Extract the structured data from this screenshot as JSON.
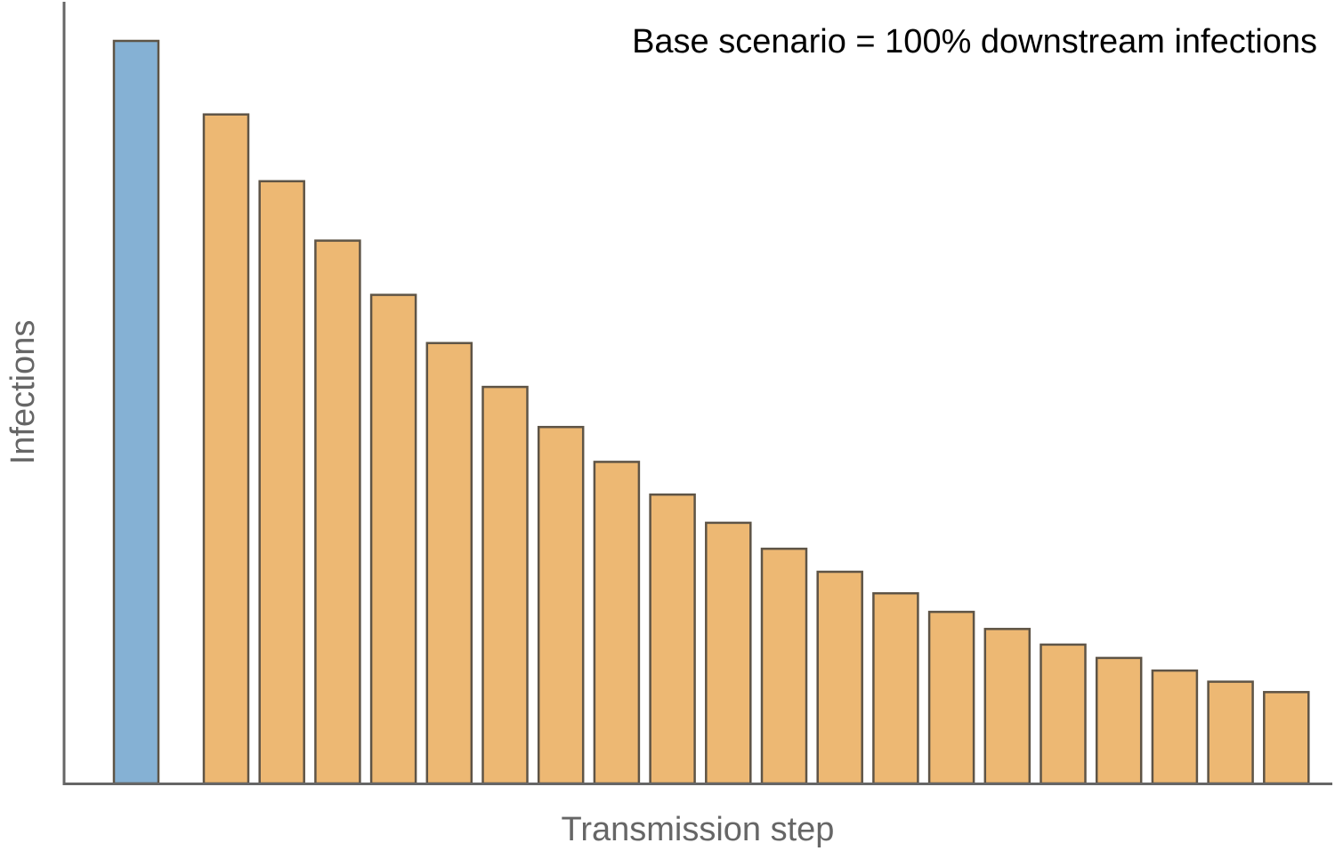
{
  "chart_data": {
    "type": "bar",
    "title": "",
    "annotation": "Base scenario = 100% downstream infections",
    "xlabel": "Transmission step",
    "ylabel": "Infections",
    "x_tick_labels_shown": false,
    "y_tick_labels_shown": false,
    "grid": false,
    "ylim": [
      0,
      100
    ],
    "colors": {
      "base": "#85b1d4",
      "downstream": "#edb873",
      "bar_edge": "#5e5446",
      "axis": "#666666",
      "axis_label": "#666666",
      "annotation": "#000000"
    },
    "bars": [
      {
        "group": "base",
        "value": 100.0
      },
      {
        "group": "downstream",
        "value": 90.1
      },
      {
        "group": "downstream",
        "value": 81.1
      },
      {
        "group": "downstream",
        "value": 73.1
      },
      {
        "group": "downstream",
        "value": 65.8
      },
      {
        "group": "downstream",
        "value": 59.3
      },
      {
        "group": "downstream",
        "value": 53.4
      },
      {
        "group": "downstream",
        "value": 48.0
      },
      {
        "group": "downstream",
        "value": 43.3
      },
      {
        "group": "downstream",
        "value": 38.9
      },
      {
        "group": "downstream",
        "value": 35.1
      },
      {
        "group": "downstream",
        "value": 31.6
      },
      {
        "group": "downstream",
        "value": 28.5
      },
      {
        "group": "downstream",
        "value": 25.6
      },
      {
        "group": "downstream",
        "value": 23.1
      },
      {
        "group": "downstream",
        "value": 20.8
      },
      {
        "group": "downstream",
        "value": 18.7
      },
      {
        "group": "downstream",
        "value": 16.9
      },
      {
        "group": "downstream",
        "value": 15.2
      },
      {
        "group": "downstream",
        "value": 13.7
      },
      {
        "group": "downstream",
        "value": 12.3
      }
    ]
  }
}
